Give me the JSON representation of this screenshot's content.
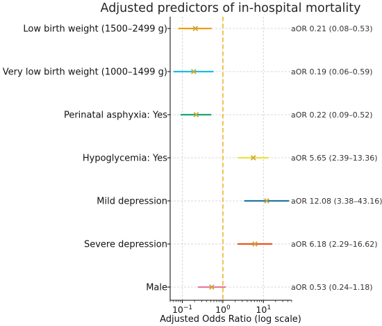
{
  "chart_data": {
    "type": "forest",
    "title": "Adjusted predictors of in-hospital mortality",
    "xlabel": "Adjusted Odds Ratio (log scale)",
    "xscale": "log",
    "xlim": [
      0.05,
      50
    ],
    "x_ticks": [
      {
        "value": 0.1,
        "base": "10",
        "exp": "−1"
      },
      {
        "value": 1,
        "base": "10",
        "exp": "0"
      },
      {
        "value": 10,
        "base": "10",
        "exp": "1"
      }
    ],
    "reference_line": 1,
    "reference_color": "#f0b323",
    "grid": true,
    "point_color": "#c8a838",
    "rows": [
      {
        "label": "Low birth weight (1500–2499 g)",
        "or": 0.21,
        "low": 0.08,
        "high": 0.53,
        "annotation": "aOR 0.21 (0.08–0.53)",
        "color": "#f39c12"
      },
      {
        "label": "Very low birth weight (1000–1499 g)",
        "or": 0.19,
        "low": 0.06,
        "high": 0.59,
        "annotation": "aOR 0.19 (0.06–0.59)",
        "color": "#1ebbe0"
      },
      {
        "label": "Perinatal asphyxia: Yes",
        "or": 0.22,
        "low": 0.09,
        "high": 0.52,
        "annotation": "aOR 0.22 (0.09–0.52)",
        "color": "#17a673"
      },
      {
        "label": "Hypoglycemia: Yes",
        "or": 5.65,
        "low": 2.39,
        "high": 13.36,
        "annotation": "aOR 5.65 (2.39–13.36)",
        "color": "#f0e040"
      },
      {
        "label": "Mild depression",
        "or": 12.08,
        "low": 3.38,
        "high": 43.16,
        "annotation": "aOR 12.08 (3.38–43.16)",
        "color": "#1f77a4"
      },
      {
        "label": "Severe depression",
        "or": 6.18,
        "low": 2.29,
        "high": 16.62,
        "annotation": "aOR 6.18 (2.29–16.62)",
        "color": "#e8541a"
      },
      {
        "label": "Male",
        "or": 0.53,
        "low": 0.24,
        "high": 1.18,
        "annotation": "aOR 0.53 (0.24–1.18)",
        "color": "#e87a99"
      }
    ]
  }
}
